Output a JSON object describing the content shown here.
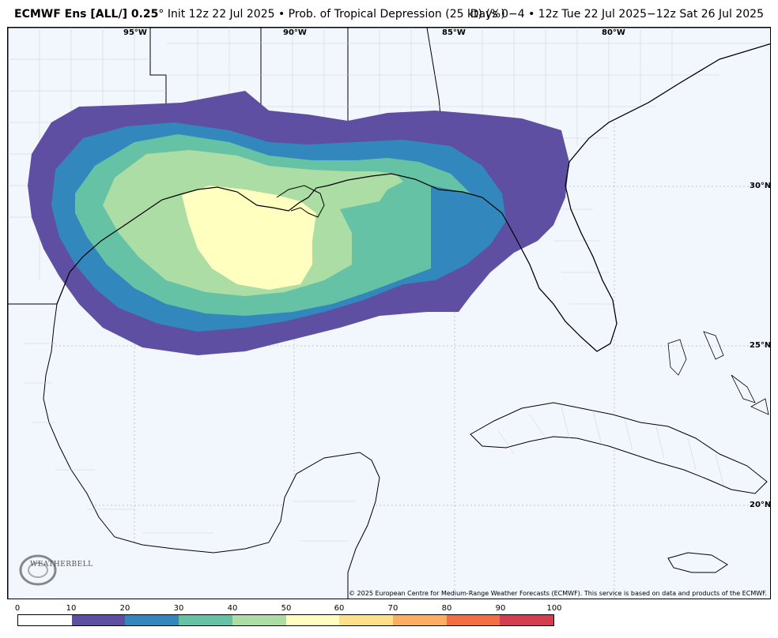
{
  "header": {
    "title_bold": "ECMWF Ens [ALL/] 0.25",
    "title_rest": "° Init 12z 22 Jul 2025 • Prob. of Tropical Depression (25 kt) (%)",
    "period": "Days 0−4 • 12z Tue 22 Jul 2025−12z Sat 26 Jul 2025"
  },
  "map": {
    "lon_labels": [
      "95°W",
      "90°W",
      "85°W",
      "80°W"
    ],
    "lat_labels": [
      "30°N",
      "25°N",
      "20°N"
    ],
    "copyright": "© 2025 European Centre for Medium-Range Weather Forecasts (ECMWF). This service is based on data and products of the ECMWF.",
    "logo_text": "WEATHERBELL"
  },
  "colorbar": {
    "ticks": [
      "0",
      "10",
      "20",
      "30",
      "40",
      "50",
      "60",
      "70",
      "80",
      "90",
      "100"
    ],
    "colors": [
      "#ffffff",
      "#5e4fa2",
      "#3288bd",
      "#66c2a5",
      "#abdda4",
      "#ffffbf",
      "#fee08b",
      "#fdae61",
      "#f46d43",
      "#d53e4f"
    ]
  },
  "colors": {
    "ocean": "#f2f6fd",
    "land": "#f2f6fd",
    "contour_10": "#5e4fa2",
    "contour_20": "#3288bd",
    "contour_30": "#66c2a5",
    "contour_40": "#abdda4",
    "contour_50": "#ffffbf"
  }
}
